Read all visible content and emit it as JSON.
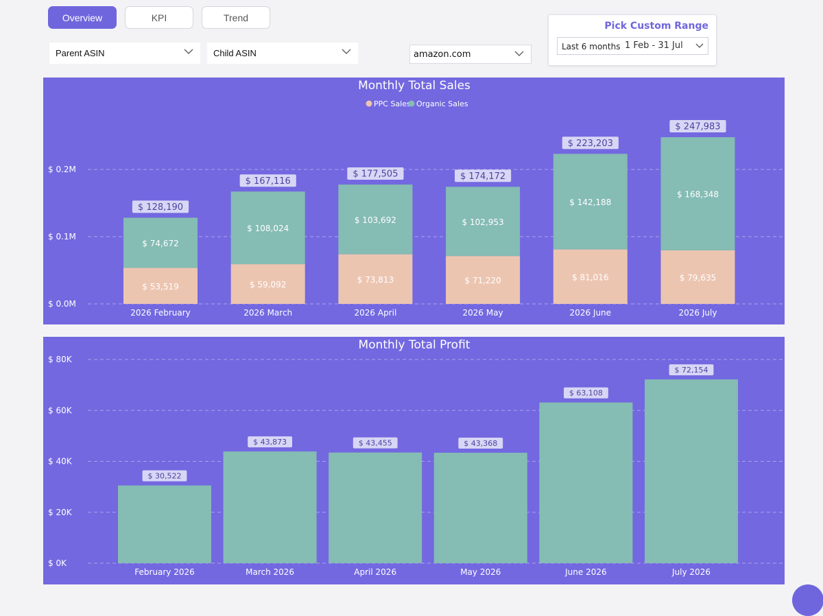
{
  "tabs": [
    {
      "label": "Overview",
      "active": true
    },
    {
      "label": "KPI",
      "active": false
    },
    {
      "label": "Trend",
      "active": false
    }
  ],
  "filters": {
    "parent_asin": "Parent ASIN",
    "child_asin": "Child ASIN",
    "marketplace": "amazon.com"
  },
  "date_range": {
    "title": "Pick Custom Range",
    "preset": "Last 6 months",
    "dates": "1 Feb - 31 Jul"
  },
  "colors": {
    "panel_bg": "#7368e0",
    "accent": "#6f66dd",
    "ppc": "#ecc5b1",
    "organic": "#85bcb4",
    "profit": "#85bcb4",
    "label_bg": "#d8d6f5"
  },
  "chart_data": [
    {
      "type": "bar",
      "stacked": true,
      "title": "Monthly Total Sales",
      "legend_position": "top-center",
      "categories": [
        "2026 February",
        "2026 March",
        "2026 April",
        "2026 May",
        "2026 June",
        "2026 July"
      ],
      "series": [
        {
          "name": "PPC Sales",
          "color": "#ecc5b1",
          "values": [
            53519,
            59092,
            73813,
            71220,
            81016,
            79635
          ],
          "labels": [
            "$ 53,519",
            "$ 59,092",
            "$ 73,813",
            "$ 71,220",
            "$ 81,016",
            "$ 79,635"
          ]
        },
        {
          "name": "Organic Sales",
          "color": "#85bcb4",
          "values": [
            74672,
            108024,
            103692,
            102953,
            142188,
            168348
          ],
          "labels": [
            "$ 74,672",
            "$ 108,024",
            "$ 103,692",
            "$ 102,953",
            "$ 142,188",
            "$ 168,348"
          ]
        }
      ],
      "totals": [
        128190,
        167116,
        177505,
        174172,
        223203,
        247983
      ],
      "total_labels": [
        "$ 128,190",
        "$ 167,116",
        "$ 177,505",
        "$ 174,172",
        "$ 223,203",
        "$ 247,983"
      ],
      "yticks": [
        0,
        100000,
        200000
      ],
      "ytick_labels": [
        "$ 0.0M",
        "$ 0.1M",
        "$ 0.2M"
      ],
      "ylim": [
        0,
        250000
      ],
      "grid": true
    },
    {
      "type": "bar",
      "title": "Monthly Total Profit",
      "categories": [
        "February 2026",
        "March 2026",
        "April 2026",
        "May 2026",
        "June 2026",
        "July 2026"
      ],
      "values": [
        30522,
        43873,
        43455,
        43368,
        63108,
        72154
      ],
      "value_labels": [
        "$ 30,522",
        "$ 43,873",
        "$ 43,455",
        "$ 43,368",
        "$ 63,108",
        "$ 72,154"
      ],
      "yticks": [
        0,
        20000,
        40000,
        60000,
        80000
      ],
      "ytick_labels": [
        "$ 0K",
        "$ 20K",
        "$ 40K",
        "$ 60K",
        "$ 80K"
      ],
      "ylim": [
        0,
        80000
      ],
      "grid": true
    }
  ]
}
